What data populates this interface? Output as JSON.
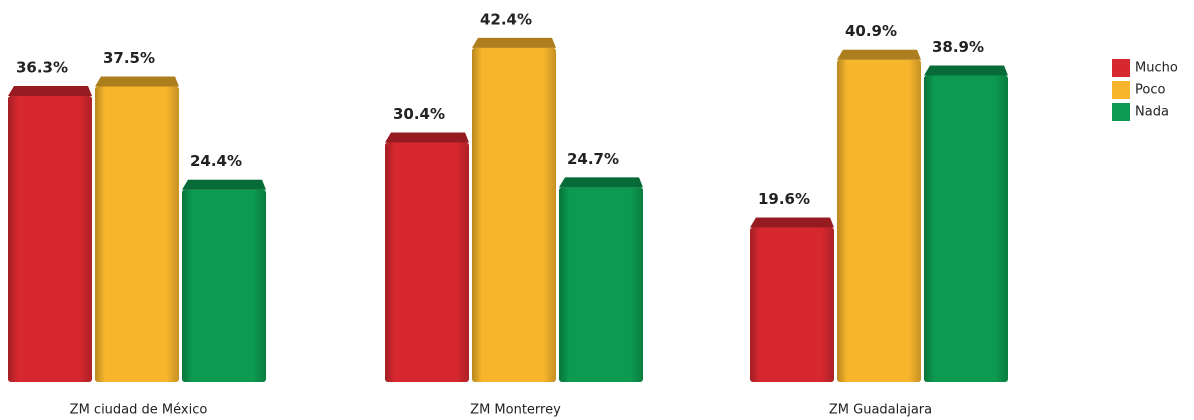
{
  "chart_data": {
    "type": "bar",
    "categories": [
      "ZM ciudad de México",
      "ZM Monterrey",
      "ZM Guadalajara"
    ],
    "series": [
      {
        "name": "Mucho",
        "color": "#d7282f",
        "values": [
          36.3,
          30.4,
          19.6
        ],
        "value_labels": [
          "36.3%",
          "30.4%",
          "19.6%"
        ]
      },
      {
        "name": "Poco",
        "color": "#f7b52c",
        "values": [
          37.5,
          42.4,
          40.9
        ],
        "value_labels": [
          "37.5%",
          "42.4%",
          "40.9%"
        ]
      },
      {
        "name": "Nada",
        "color": "#0b9a4f",
        "values": [
          24.4,
          24.7,
          38.9
        ],
        "value_labels": [
          "24.4%",
          "24.7%",
          "38.9%"
        ]
      }
    ]
  }
}
